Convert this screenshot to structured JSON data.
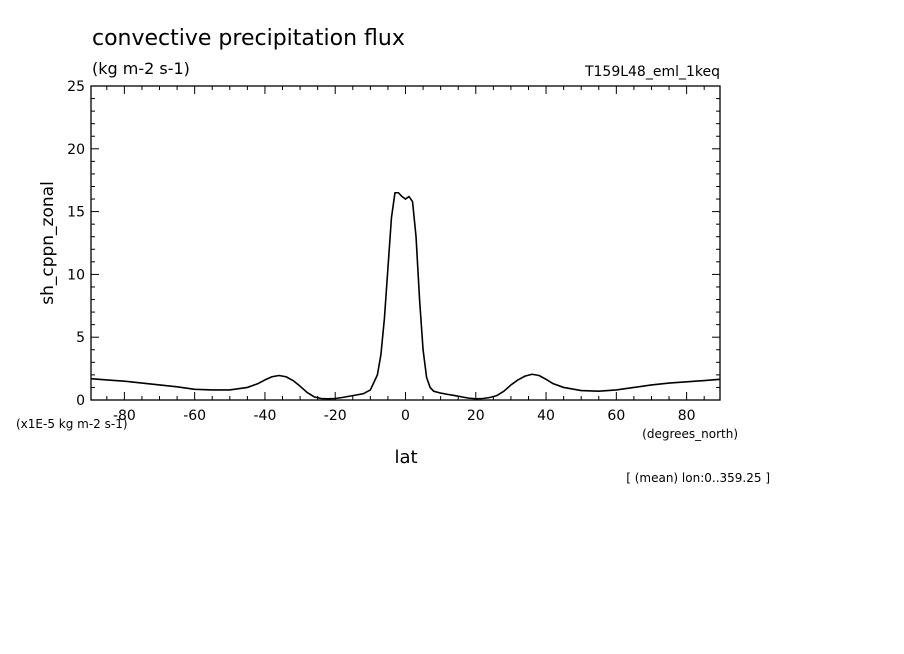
{
  "chart_data": {
    "type": "line",
    "title": "convective precipitation flux",
    "units": "(kg m-2 s-1)",
    "run_id": "T159L48_eml_1keq",
    "ylabel": "sh_cppn_zonal",
    "xlabel": "lat",
    "xunits": "(degrees_north)",
    "yscale_note": "(x1E-5 kg m-2 s-1)",
    "footnote": "[ (mean) lon:0..359.25 ]",
    "xlim": [
      -89.5,
      89.5
    ],
    "ylim": [
      0,
      25
    ],
    "xticks": [
      -80,
      -60,
      -40,
      -20,
      0,
      20,
      40,
      60,
      80
    ],
    "xtick_labels": [
      "-80",
      "-60",
      "-40",
      "-20",
      "0",
      "20",
      "40",
      "60",
      "80"
    ],
    "yticks": [
      0,
      5,
      10,
      15,
      20,
      25
    ],
    "ytick_labels": [
      "0",
      "5",
      "10",
      "15",
      "20",
      "25"
    ],
    "series": [
      {
        "x": [
          -89.5,
          -85,
          -80,
          -75,
          -70,
          -65,
          -60,
          -55,
          -50,
          -45,
          -42,
          -40,
          -38,
          -36,
          -34,
          -32,
          -30,
          -28,
          -26,
          -24,
          -22,
          -20,
          -18,
          -16,
          -14,
          -12,
          -10,
          -8,
          -7,
          -6,
          -5,
          -4,
          -3,
          -2,
          -1,
          0,
          1,
          2,
          3,
          4,
          5,
          6,
          7,
          8,
          10,
          12,
          14,
          16,
          18,
          20,
          22,
          24,
          26,
          28,
          30,
          32,
          34,
          36,
          38,
          40,
          42,
          45,
          50,
          55,
          60,
          65,
          70,
          75,
          80,
          85,
          89.5
        ],
        "y": [
          1.7,
          1.6,
          1.5,
          1.35,
          1.2,
          1.05,
          0.85,
          0.8,
          0.8,
          1.0,
          1.3,
          1.6,
          1.85,
          1.95,
          1.85,
          1.55,
          1.1,
          0.6,
          0.25,
          0.12,
          0.1,
          0.12,
          0.2,
          0.3,
          0.4,
          0.5,
          0.8,
          2.0,
          3.6,
          6.5,
          10.5,
          14.5,
          16.5,
          16.5,
          16.2,
          16.0,
          16.2,
          15.8,
          13.0,
          8.0,
          4.0,
          1.8,
          1.0,
          0.7,
          0.55,
          0.45,
          0.35,
          0.25,
          0.15,
          0.1,
          0.12,
          0.2,
          0.35,
          0.7,
          1.2,
          1.6,
          1.9,
          2.05,
          1.95,
          1.65,
          1.3,
          1.0,
          0.75,
          0.7,
          0.8,
          1.0,
          1.2,
          1.35,
          1.45,
          1.55,
          1.65
        ]
      }
    ]
  }
}
